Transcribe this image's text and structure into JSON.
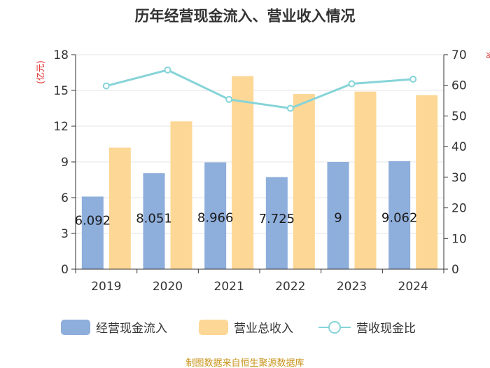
{
  "chart_data": {
    "type": "bar",
    "title": "历年经营现金流入、营业收入情况",
    "categories": [
      "2019",
      "2020",
      "2021",
      "2022",
      "2023",
      "2024"
    ],
    "left_axis": {
      "unit": "(亿元)",
      "ticks": [
        0,
        3,
        6,
        9,
        12,
        15,
        18
      ],
      "ylim": [
        0,
        18
      ]
    },
    "right_axis": {
      "unit": "%",
      "ticks": [
        0,
        10,
        20,
        30,
        40,
        50,
        60,
        70
      ],
      "ylim": [
        0,
        70
      ]
    },
    "series": [
      {
        "name": "经营现金流入",
        "type": "bar",
        "axis": "left",
        "values": [
          6.092,
          8.051,
          8.966,
          7.725,
          9,
          9.062
        ],
        "labels": [
          "6.092",
          "8.051",
          "8.966",
          "7.725",
          "9",
          "9.062"
        ],
        "color": "#8eaedc"
      },
      {
        "name": "营业总收入",
        "type": "bar",
        "axis": "left",
        "values": [
          10.2,
          12.4,
          16.2,
          14.7,
          14.9,
          14.6
        ],
        "color": "#fdd795"
      },
      {
        "name": "营收现金比",
        "type": "line",
        "axis": "right",
        "values": [
          59.8,
          65.0,
          55.4,
          52.5,
          60.5,
          62.0
        ],
        "color": "#86d4d8"
      }
    ],
    "legend_position": "bottom",
    "grid": true
  },
  "source": "制图数据来自恒生聚源数据库"
}
